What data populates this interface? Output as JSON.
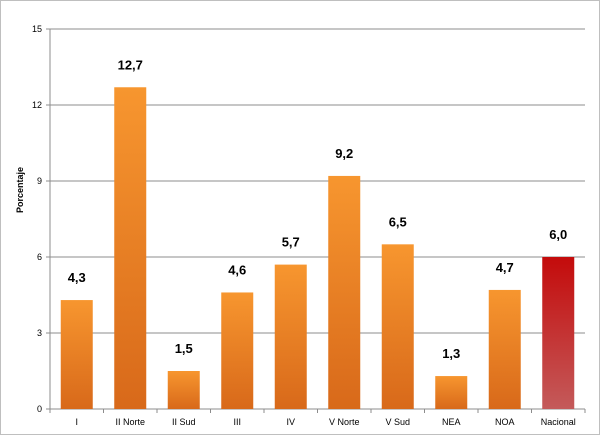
{
  "chart_data": {
    "type": "bar",
    "ylabel": "Porcentaje",
    "ylim": [
      0,
      15
    ],
    "yticks": [
      0,
      3,
      6,
      9,
      12,
      15
    ],
    "grid": true,
    "categories": [
      "I",
      "II Norte",
      "II Sud",
      "III",
      "IV",
      "V Norte",
      "V Sud",
      "NEA",
      "NOA",
      "Nacional"
    ],
    "values": [
      4.3,
      12.7,
      1.5,
      4.6,
      5.7,
      9.2,
      6.5,
      1.3,
      4.7,
      6.0
    ],
    "data_labels": [
      "4,3",
      "12,7",
      "1,5",
      "4,6",
      "5,7",
      "9,2",
      "6,5",
      "1,3",
      "4,7",
      "6,0"
    ],
    "highlight_category": "Nacional",
    "colors": {
      "bar_top": "#f7962f",
      "bar_bottom": "#d8691a",
      "highlight_top": "#c40b0b",
      "highlight_bottom": "#c45a5a",
      "grid": "#8c8c8c"
    }
  }
}
